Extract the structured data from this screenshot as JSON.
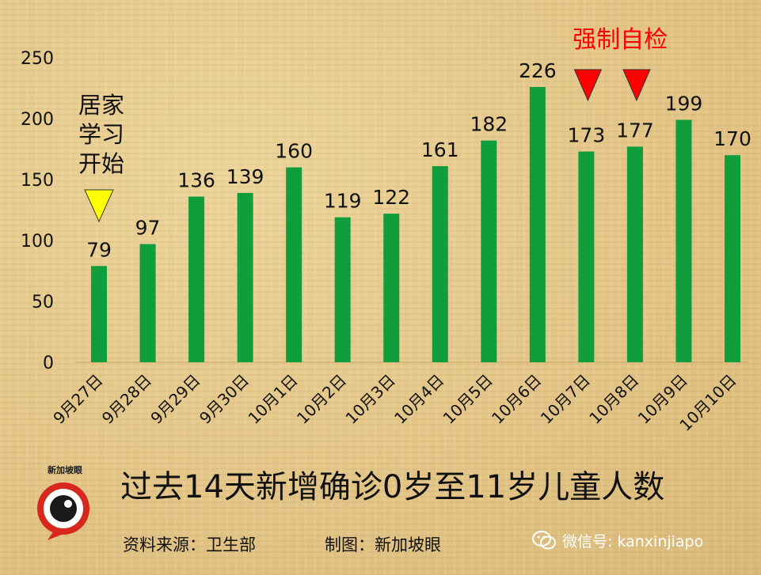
{
  "chart_data": {
    "type": "bar",
    "categories": [
      "9月27日",
      "9月28日",
      "9月29日",
      "9月30日",
      "10月1日",
      "10月2日",
      "10月3日",
      "10月4日",
      "10月5日",
      "10月6日",
      "10月7日",
      "10月8日",
      "10月9日",
      "10月10日"
    ],
    "values": [
      79,
      97,
      136,
      139,
      160,
      119,
      122,
      161,
      182,
      226,
      173,
      177,
      199,
      170
    ],
    "ylim": [
      0,
      250
    ],
    "yticks": [
      0,
      50,
      100,
      150,
      200,
      250
    ],
    "grid": false,
    "bar_color": "#109d3b",
    "annotations": [
      {
        "text": "居家\n学习\n开始",
        "category": "9月27日",
        "marker": "yellow-triangle",
        "color": "#ffff00"
      },
      {
        "text": "强制自检",
        "categories": [
          "10月7日",
          "10月8日"
        ],
        "marker": "red-triangle",
        "color": "#ff0000"
      }
    ]
  },
  "title": "过去14天新增确诊0岁至11岁儿童人数",
  "source": "资料来源：卫生部",
  "credit": "制图：新加坡眼",
  "logo_text": "新加坡眼",
  "wechat": "微信号: kanxinjiapo"
}
